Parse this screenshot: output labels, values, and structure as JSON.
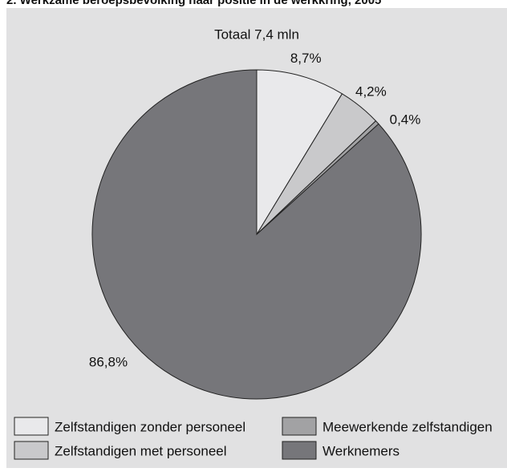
{
  "chart_data": {
    "type": "pie",
    "title": "2. Werkzame beroepsbevolking naar positie in de werkkring, 2005",
    "subtitle": "Totaal 7,4 mln",
    "categories": [
      "Zelfstandigen zonder personeel",
      "Zelfstandigen met personeel",
      "Meewerkende zelfstandigen",
      "Werknemers"
    ],
    "values": [
      8.7,
      4.2,
      0.4,
      86.8
    ],
    "value_labels": [
      "8,7%",
      "4,2%",
      "0,4%",
      "86,8%"
    ],
    "colors": [
      "#e9e9eb",
      "#c9c9cb",
      "#a2a2a4",
      "#76767a"
    ]
  }
}
